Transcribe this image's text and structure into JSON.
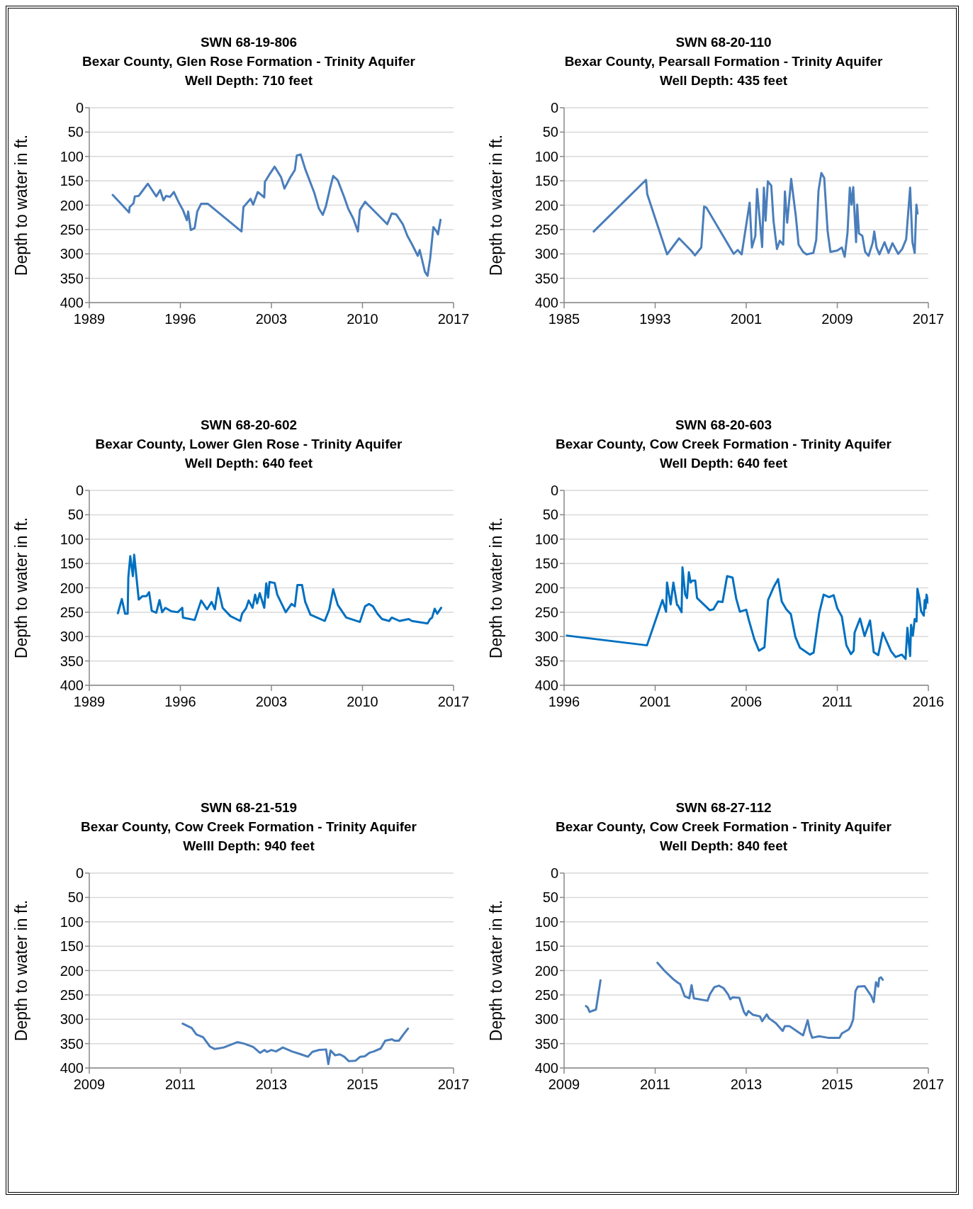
{
  "chart_data": [
    {
      "type": "line",
      "title": "SWN 68-19-806",
      "subtitle": "Bexar County, Glen Rose Formation - Trinity Aquifer",
      "annotations": [
        "Well Depth: 710 feet"
      ],
      "ylabel": "Depth to water in ft.",
      "xlim": [
        1989,
        2017
      ],
      "xticks": [
        1989,
        1996,
        2003,
        2010,
        2017
      ],
      "ylim": [
        400,
        0
      ],
      "yticks": [
        0,
        50,
        100,
        150,
        200,
        250,
        300,
        350,
        400
      ],
      "grid": "y",
      "marker": "none",
      "line_style": "solid",
      "color": "#4a7ebb",
      "x": [
        1990.8,
        1992.06,
        1992.1,
        1992.4,
        1992.5,
        1992.8,
        1993.05,
        1993.5,
        1994.15,
        1994.45,
        1994.7,
        1994.9,
        1995.2,
        1995.5,
        1995.85,
        1996.2,
        1996.5,
        1996.6,
        1996.8,
        1997.1,
        1997.3,
        1997.6,
        1998.1,
        2000.7,
        2000.85,
        2001.4,
        2001.6,
        2001.95,
        2002.45,
        2002.5,
        2002.85,
        2003.25,
        2003.75,
        2004.0,
        2004.45,
        2004.8,
        2004.95,
        2005.25,
        2005.6,
        2006.3,
        2006.65,
        2006.95,
        2007.2,
        2007.5,
        2007.75,
        2008.1,
        2008.6,
        2008.9,
        2009.3,
        2009.65,
        2009.8,
        2010.2,
        2011.9,
        2012.25,
        2012.6,
        2013.1,
        2013.45,
        2013.8,
        2014.25,
        2014.4,
        2014.8,
        2015.0,
        2015.2,
        2015.45,
        2015.7,
        2015.8,
        2016.0
      ],
      "values": [
        179,
        215,
        204,
        196,
        182,
        181,
        172,
        156,
        182,
        169,
        190,
        181,
        183,
        173,
        193,
        210,
        231,
        213,
        251,
        247,
        213,
        197,
        197,
        254,
        204,
        187,
        199,
        173,
        184,
        152,
        137,
        121,
        143,
        166,
        143,
        128,
        98,
        96,
        126,
        175,
        207,
        220,
        201,
        166,
        140,
        149,
        184,
        207,
        228,
        254,
        210,
        193,
        239,
        217,
        219,
        239,
        263,
        280,
        304,
        292,
        337,
        345,
        310,
        245,
        254,
        260,
        230
      ]
    },
    {
      "type": "line",
      "title": "SWN 68-20-110",
      "subtitle": "Bexar County, Pearsall Formation - Trinity Aquifer",
      "annotations": [
        "Well Depth: 435 feet"
      ],
      "ylabel": "Depth to water in ft.",
      "xlim": [
        1985,
        2017
      ],
      "xticks": [
        1985,
        1993,
        2001,
        2009,
        2017
      ],
      "ylim": [
        400,
        0
      ],
      "yticks": [
        0,
        50,
        100,
        150,
        200,
        250,
        300,
        350,
        400
      ],
      "grid": "y",
      "marker": "none",
      "line_style": "solid",
      "color": "#4a7ebb",
      "x": [
        1987.6,
        1992.2,
        1992.3,
        1994.05,
        1995.1,
        1996.15,
        1996.5,
        1997.05,
        1997.3,
        1997.5,
        1999.9,
        2000.25,
        2000.6,
        2001.3,
        2001.5,
        2001.8,
        2001.95,
        2002.4,
        2002.55,
        2002.7,
        2002.9,
        2003.2,
        2003.4,
        2003.7,
        2003.95,
        2004.25,
        2004.4,
        2004.6,
        2004.95,
        2005.15,
        2005.35,
        2005.6,
        2006.0,
        2006.3,
        2006.9,
        2007.15,
        2007.35,
        2007.6,
        2007.85,
        2008.15,
        2008.4,
        2009.0,
        2009.4,
        2009.65,
        2009.9,
        2010.1,
        2010.25,
        2010.4,
        2010.65,
        2010.75,
        2010.9,
        2011.2,
        2011.45,
        2011.75,
        2012.1,
        2012.25,
        2012.45,
        2012.7,
        2013.15,
        2013.5,
        2013.85,
        2014.35,
        2014.7,
        2015.05,
        2015.4,
        2015.6,
        2015.8,
        2015.95,
        2016.05
      ],
      "values": [
        254,
        148,
        177,
        301,
        268,
        293,
        303,
        287,
        203,
        205,
        300,
        292,
        301,
        195,
        287,
        263,
        167,
        286,
        164,
        232,
        151,
        160,
        233,
        290,
        273,
        281,
        172,
        236,
        146,
        184,
        221,
        281,
        296,
        301,
        298,
        271,
        170,
        134,
        144,
        253,
        296,
        293,
        287,
        306,
        256,
        164,
        199,
        163,
        276,
        199,
        258,
        263,
        296,
        304,
        278,
        254,
        287,
        301,
        276,
        298,
        278,
        300,
        290,
        270,
        164,
        276,
        298,
        199,
        217
      ]
    },
    {
      "type": "line",
      "title": "SWN 68-20-602",
      "subtitle": "Bexar County, Lower Glen Rose - Trinity Aquifer",
      "annotations": [
        "Well Depth: 640 feet"
      ],
      "ylabel": "Depth to water in ft.",
      "xlim": [
        1989,
        2017
      ],
      "xticks": [
        1989,
        1996,
        2003,
        2010,
        2017
      ],
      "ylim": [
        400,
        0
      ],
      "yticks": [
        0,
        50,
        100,
        150,
        200,
        250,
        300,
        350,
        400
      ],
      "grid": "y",
      "marker": "none",
      "line_style": "solid",
      "color": "#0070c0",
      "x": [
        1991.2,
        1991.5,
        1991.75,
        1991.95,
        1992.0,
        1992.15,
        1992.35,
        1992.45,
        1992.8,
        1993.1,
        1993.4,
        1993.6,
        1993.8,
        1994.15,
        1994.4,
        1994.6,
        1994.85,
        1995.3,
        1995.8,
        1996.15,
        1996.2,
        1997.1,
        1997.6,
        1998.05,
        1998.4,
        1998.65,
        1998.9,
        1999.25,
        1999.85,
        2000.6,
        2000.75,
        2001.05,
        2001.25,
        2001.55,
        2001.75,
        2001.9,
        2002.1,
        2002.45,
        2002.6,
        2002.75,
        2002.85,
        2003.25,
        2003.45,
        2004.1,
        2004.55,
        2004.8,
        2005.0,
        2005.35,
        2005.6,
        2006.0,
        2006.5,
        2007.1,
        2007.45,
        2007.75,
        2008.1,
        2008.75,
        2009.8,
        2010.2,
        2010.5,
        2010.8,
        2011.15,
        2011.5,
        2012.05,
        2012.25,
        2012.85,
        2013.55,
        2013.8,
        2015.0,
        2015.2,
        2015.35,
        2015.55,
        2015.75,
        2015.85,
        2016.05
      ],
      "values": [
        252,
        223,
        253,
        253,
        179,
        135,
        176,
        132,
        224,
        217,
        217,
        209,
        247,
        251,
        225,
        250,
        241,
        248,
        250,
        241,
        261,
        266,
        226,
        244,
        229,
        244,
        200,
        241,
        258,
        268,
        253,
        242,
        226,
        241,
        214,
        232,
        211,
        241,
        191,
        220,
        188,
        190,
        214,
        250,
        233,
        238,
        194,
        194,
        229,
        255,
        261,
        268,
        244,
        203,
        235,
        261,
        270,
        238,
        233,
        238,
        253,
        264,
        268,
        261,
        268,
        264,
        268,
        273,
        264,
        261,
        243,
        253,
        249,
        241
      ]
    },
    {
      "type": "line",
      "title": "SWN 68-20-603",
      "subtitle": "Bexar County, Cow Creek Formation - Trinity Aquifer",
      "annotations": [
        "Well Depth: 640 feet"
      ],
      "ylabel": "Depth to water in ft.",
      "xlim": [
        1996,
        2016
      ],
      "xticks": [
        1996,
        2001,
        2006,
        2011,
        2016
      ],
      "ylim": [
        400,
        0
      ],
      "yticks": [
        0,
        50,
        100,
        150,
        200,
        250,
        300,
        350,
        400
      ],
      "grid": "y",
      "marker": "none",
      "line_style": "solid",
      "color": "#0070c0",
      "x": [
        1996.15,
        2000.55,
        2001.4,
        2001.6,
        2001.65,
        2001.85,
        2002.0,
        2002.2,
        2002.25,
        2002.45,
        2002.5,
        2002.65,
        2002.75,
        2002.85,
        2002.95,
        2003.05,
        2003.2,
        2003.3,
        2004.0,
        2004.2,
        2004.45,
        2004.7,
        2004.95,
        2005.25,
        2005.45,
        2005.65,
        2006.0,
        2006.15,
        2006.45,
        2006.7,
        2007.0,
        2007.2,
        2007.5,
        2007.75,
        2007.95,
        2008.2,
        2008.45,
        2008.7,
        2008.95,
        2009.5,
        2009.7,
        2010.0,
        2010.25,
        2010.55,
        2010.8,
        2011.0,
        2011.25,
        2011.5,
        2011.75,
        2011.9,
        2011.95,
        2012.25,
        2012.5,
        2012.8,
        2013.0,
        2013.25,
        2013.5,
        2013.95,
        2014.2,
        2014.55,
        2014.75,
        2014.85,
        2015.0,
        2015.05,
        2015.15,
        2015.25,
        2015.35,
        2015.4,
        2015.5,
        2015.6,
        2015.75,
        2015.8,
        2015.85,
        2015.9,
        2016.0
      ],
      "values": [
        298,
        318,
        225,
        249,
        189,
        234,
        189,
        235,
        236,
        250,
        158,
        214,
        221,
        168,
        189,
        185,
        185,
        221,
        246,
        244,
        228,
        229,
        176,
        179,
        222,
        249,
        245,
        267,
        306,
        329,
        322,
        225,
        199,
        182,
        228,
        244,
        254,
        301,
        323,
        337,
        333,
        253,
        214,
        219,
        215,
        242,
        259,
        318,
        336,
        329,
        292,
        263,
        299,
        267,
        332,
        338,
        292,
        330,
        342,
        337,
        346,
        282,
        340,
        276,
        298,
        264,
        269,
        202,
        220,
        248,
        257,
        225,
        242,
        214,
        231
      ]
    },
    {
      "type": "line",
      "title": "SWN 68-21-519",
      "subtitle": "Bexar County, Cow Creek Formation - Trinity Aquifer",
      "annotations": [
        "Welll Depth: 940 feet"
      ],
      "ylabel": "Depth to water in ft.",
      "xlim": [
        2009,
        2017
      ],
      "xticks": [
        2009,
        2011,
        2013,
        2015,
        2017
      ],
      "ylim": [
        400,
        0
      ],
      "yticks": [
        0,
        50,
        100,
        150,
        200,
        250,
        300,
        350,
        400
      ],
      "grid": "y",
      "marker": "none",
      "line_style": "solid",
      "color": "#4a7ebb",
      "x": [
        2011.05,
        2011.25,
        2011.35,
        2011.5,
        2011.65,
        2011.75,
        2011.95,
        2012.25,
        2012.4,
        2012.6,
        2012.75,
        2012.85,
        2012.9,
        2013.0,
        2013.1,
        2013.25,
        2013.45,
        2013.65,
        2013.8,
        2013.9,
        2014.05,
        2014.2,
        2014.25,
        2014.3,
        2014.4,
        2014.5,
        2014.6,
        2014.7,
        2014.85,
        2014.95,
        2015.05,
        2015.15,
        2015.25,
        2015.4,
        2015.5,
        2015.65,
        2015.7,
        2015.8,
        2015.9,
        2016.0
      ],
      "values": [
        309,
        318,
        331,
        337,
        356,
        361,
        358,
        347,
        350,
        357,
        369,
        363,
        367,
        363,
        366,
        358,
        366,
        372,
        377,
        367,
        363,
        362,
        392,
        364,
        374,
        372,
        377,
        386,
        385,
        377,
        376,
        369,
        366,
        360,
        344,
        341,
        344,
        344,
        331,
        319
      ]
    },
    {
      "type": "line",
      "title": "SWN 68-27-112",
      "subtitle": "Bexar County, Cow Creek Formation - Trinity Aquifer",
      "annotations": [
        "Well Depth: 840 feet"
      ],
      "ylabel": "Depth to water in ft.",
      "xlim": [
        2009,
        2017
      ],
      "xticks": [
        2009,
        2011,
        2013,
        2015,
        2017
      ],
      "ylim": [
        400,
        0
      ],
      "yticks": [
        0,
        50,
        100,
        150,
        200,
        250,
        300,
        350,
        400
      ],
      "grid": "y",
      "marker": "none",
      "line_style": "solid",
      "color": "#4a7ebb",
      "x": [
        2009.48,
        2009.52,
        2009.56,
        2009.7,
        2009.8,
        2010.4,
        2011.05,
        2011.2,
        2011.4,
        2011.5,
        2011.55,
        2011.65,
        2011.75,
        2011.8,
        2011.85,
        2012.15,
        2012.2,
        2012.3,
        2012.4,
        2012.5,
        2012.6,
        2012.65,
        2012.7,
        2012.85,
        2012.95,
        2013.0,
        2013.05,
        2013.15,
        2013.3,
        2013.35,
        2013.45,
        2013.5,
        2013.65,
        2013.8,
        2013.85,
        2013.95,
        2014.15,
        2014.25,
        2014.35,
        2014.4,
        2014.45,
        2014.6,
        2014.8,
        2015.05,
        2015.1,
        2015.25,
        2015.3,
        2015.35,
        2015.4,
        2015.45,
        2015.6,
        2015.75,
        2015.8,
        2015.85,
        2015.9,
        2015.92,
        2015.96,
        2016.0
      ],
      "values": [
        273,
        276,
        285,
        280,
        220,
        null,
        184,
        200,
        218,
        225,
        228,
        253,
        257,
        230,
        257,
        262,
        249,
        234,
        231,
        236,
        249,
        259,
        255,
        256,
        285,
        292,
        283,
        291,
        294,
        304,
        290,
        298,
        308,
        324,
        314,
        314,
        327,
        333,
        302,
        325,
        338,
        335,
        338,
        338,
        329,
        321,
        313,
        300,
        242,
        233,
        232,
        253,
        265,
        224,
        233,
        216,
        214,
        219
      ]
    }
  ]
}
